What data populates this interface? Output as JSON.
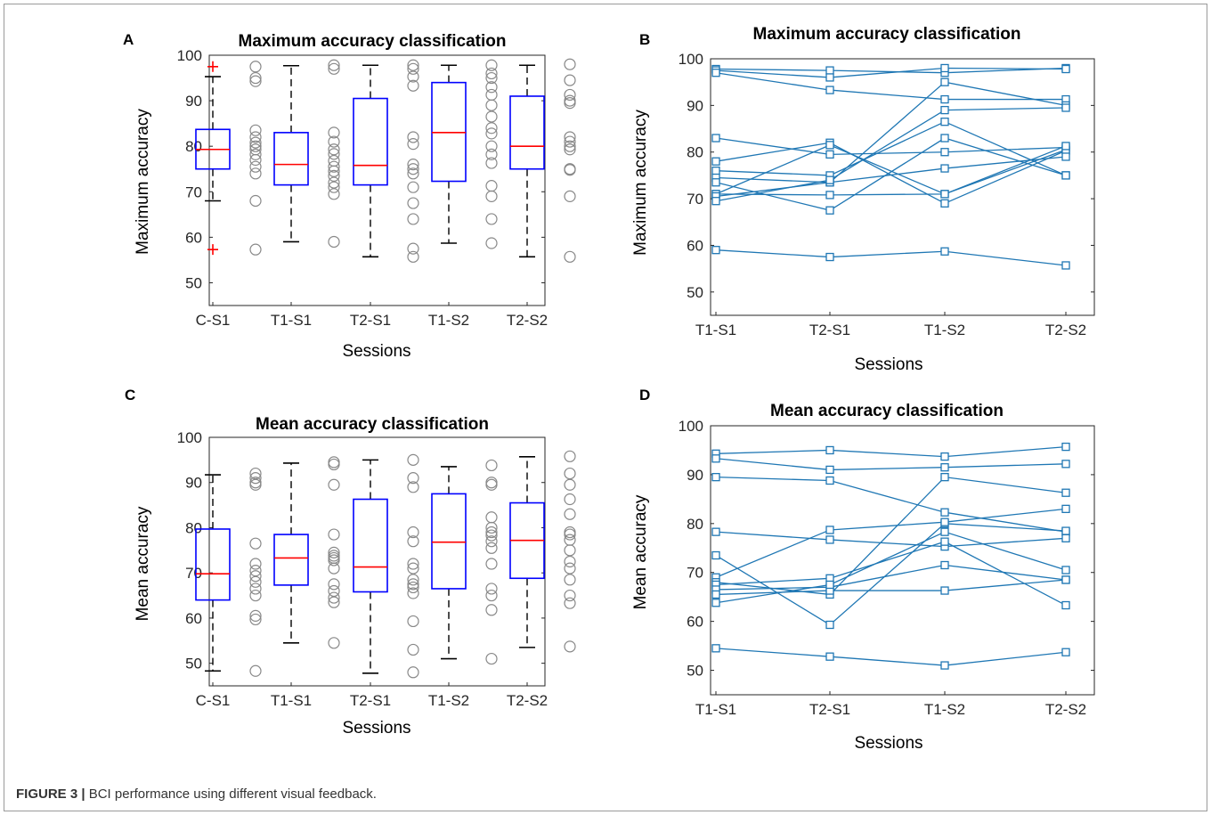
{
  "figure": {
    "caption_label": "FIGURE 3 |",
    "caption_text": "BCI performance using different visual feedback."
  },
  "colors": {
    "box": "#0000ff",
    "median": "#ff0000",
    "outlier": "#ff0000",
    "whisker": "#000000",
    "scatter_point": "#888888",
    "line_series": "#1f77b4"
  },
  "chart_data": [
    {
      "panel": "A",
      "type": "box",
      "title": "Maximum accuracy classification",
      "xlabel": "Sessions",
      "ylabel": "Maximum accuracy",
      "ylim": [
        45,
        100
      ],
      "yticks": [
        50,
        60,
        70,
        80,
        90,
        100
      ],
      "categories": [
        "C-S1",
        "T1-S1",
        "T2-S1",
        "T1-S2",
        "T2-S2"
      ],
      "boxes": [
        {
          "q1": 75,
          "median": 79.3,
          "q3": 83.7,
          "whisker_low": 68,
          "whisker_high": 95.3,
          "outliers": [
            97.5,
            57.3
          ]
        },
        {
          "q1": 71.5,
          "median": 76,
          "q3": 83,
          "whisker_low": 59,
          "whisker_high": 97.7,
          "outliers": []
        },
        {
          "q1": 71.5,
          "median": 75.8,
          "q3": 90.5,
          "whisker_low": 55.7,
          "whisker_high": 97.8,
          "outliers": []
        },
        {
          "q1": 72.3,
          "median": 83,
          "q3": 94,
          "whisker_low": 58.7,
          "whisker_high": 97.8,
          "outliers": []
        },
        {
          "q1": 75,
          "median": 80,
          "q3": 91,
          "whisker_low": 55.7,
          "whisker_high": 97.8,
          "outliers": []
        }
      ],
      "points": [
        [
          97.5,
          95,
          94.3,
          83.5,
          82,
          80.8,
          80,
          79.3,
          78.2,
          77,
          75.5,
          74,
          68,
          57.3
        ],
        [
          97.8,
          97,
          83,
          81,
          79.3,
          78.3,
          76.8,
          75.5,
          74.5,
          73.5,
          72,
          71,
          69.5,
          59
        ],
        [
          97.8,
          97,
          95.3,
          93.3,
          82,
          80.5,
          76,
          75,
          74,
          71,
          67.5,
          64,
          57.5,
          55.7
        ],
        [
          97.8,
          96,
          95,
          93,
          91.3,
          89,
          86.5,
          84,
          82.8,
          80,
          78.2,
          76.3,
          71.3,
          69,
          64,
          58.7
        ],
        [
          98,
          94.5,
          91.3,
          90,
          89.5,
          82,
          81,
          80,
          79.3,
          75,
          74.8,
          69,
          55.7
        ]
      ]
    },
    {
      "panel": "B",
      "type": "line",
      "title": "Maximum accuracy classification",
      "xlabel": "Sessions",
      "ylabel": "Maximum accuracy",
      "ylim": [
        45,
        100
      ],
      "yticks": [
        50,
        60,
        70,
        80,
        90,
        100
      ],
      "categories": [
        "T1-S1",
        "T2-S1",
        "T1-S2",
        "T2-S2"
      ],
      "series": [
        {
          "values": [
            97.8,
            97.5,
            97.0,
            98.0
          ]
        },
        {
          "values": [
            97.5,
            96.0,
            98.0,
            97.8
          ]
        },
        {
          "values": [
            97.0,
            93.3,
            91.3,
            91.3
          ]
        },
        {
          "values": [
            83.0,
            79.5,
            80.0,
            81.0
          ]
        },
        {
          "values": [
            78.0,
            82.0,
            69.0,
            80.3
          ]
        },
        {
          "values": [
            76.0,
            75.0,
            86.5,
            75.0
          ]
        },
        {
          "values": [
            74.5,
            73.5,
            95.0,
            90.0
          ]
        },
        {
          "values": [
            73.5,
            67.5,
            83.0,
            75.0
          ]
        },
        {
          "values": [
            71.0,
            81.5,
            71.0,
            80.5
          ]
        },
        {
          "values": [
            71.0,
            70.8,
            71.0,
            81.3
          ]
        },
        {
          "values": [
            70.5,
            73.5,
            76.5,
            79.0
          ]
        },
        {
          "values": [
            69.5,
            74.0,
            89.0,
            89.5
          ]
        },
        {
          "values": [
            59.0,
            57.5,
            58.7,
            55.7
          ]
        }
      ]
    },
    {
      "panel": "C",
      "type": "box",
      "title": "Mean accuracy classification",
      "xlabel": "Sessions",
      "ylabel": "Mean accuracy",
      "ylim": [
        45,
        100
      ],
      "yticks": [
        50,
        60,
        70,
        80,
        90,
        100
      ],
      "categories": [
        "C-S1",
        "T1-S1",
        "T2-S1",
        "T1-S2",
        "T2-S2"
      ],
      "boxes": [
        {
          "q1": 64,
          "median": 69.8,
          "q3": 79.7,
          "whisker_low": 48.3,
          "whisker_high": 91.7,
          "outliers": []
        },
        {
          "q1": 67.3,
          "median": 73.3,
          "q3": 78.5,
          "whisker_low": 54.5,
          "whisker_high": 94.3,
          "outliers": []
        },
        {
          "q1": 65.8,
          "median": 71.3,
          "q3": 86.3,
          "whisker_low": 47.8,
          "whisker_high": 95,
          "outliers": []
        },
        {
          "q1": 66.5,
          "median": 76.8,
          "q3": 87.5,
          "whisker_low": 51,
          "whisker_high": 93.5,
          "outliers": []
        },
        {
          "q1": 68.8,
          "median": 77.2,
          "q3": 85.5,
          "whisker_low": 53.5,
          "whisker_high": 95.7,
          "outliers": []
        }
      ],
      "points": [
        [
          92,
          91,
          90,
          89.5,
          76.5,
          72,
          70.5,
          69.3,
          68,
          66.5,
          65,
          60.5,
          59.7,
          48.3
        ],
        [
          94.5,
          94,
          89.5,
          78.5,
          74.5,
          73.8,
          73.3,
          72.8,
          71,
          67.5,
          66,
          64.5,
          63.5,
          54.5
        ],
        [
          95,
          91,
          89,
          79,
          77,
          72,
          71,
          68.5,
          67.5,
          66.8,
          65.5,
          59.3,
          53,
          48
        ],
        [
          93.8,
          90,
          89.5,
          82.3,
          80,
          79,
          78.3,
          77,
          75.5,
          72,
          66.5,
          65,
          61.8,
          51
        ],
        [
          95.8,
          92,
          89.5,
          86.3,
          83,
          79,
          78.5,
          77.3,
          75,
          72.5,
          71,
          68.5,
          65,
          63.3,
          53.7
        ]
      ]
    },
    {
      "panel": "D",
      "type": "line",
      "title": "Mean accuracy classification",
      "xlabel": "Sessions",
      "ylabel": "Mean accuracy",
      "ylim": [
        45,
        100
      ],
      "yticks": [
        50,
        60,
        70,
        80,
        90,
        100
      ],
      "categories": [
        "T1-S1",
        "T2-S1",
        "T1-S2",
        "T2-S2"
      ],
      "series": [
        {
          "values": [
            94.3,
            95.0,
            93.7,
            95.7
          ]
        },
        {
          "values": [
            93.3,
            91.0,
            91.5,
            92.2
          ]
        },
        {
          "values": [
            89.5,
            88.8,
            82.3,
            78.3
          ]
        },
        {
          "values": [
            78.3,
            76.7,
            75.3,
            77.0
          ]
        },
        {
          "values": [
            73.5,
            59.3,
            80.0,
            78.5
          ]
        },
        {
          "values": [
            69.0,
            78.7,
            80.3,
            83.0
          ]
        },
        {
          "values": [
            68.0,
            65.5,
            89.5,
            86.3
          ]
        },
        {
          "values": [
            67.5,
            68.8,
            76.3,
            63.3
          ]
        },
        {
          "values": [
            66.5,
            67.0,
            71.5,
            68.5
          ]
        },
        {
          "values": [
            65.5,
            66.3,
            66.3,
            68.5
          ]
        },
        {
          "values": [
            63.8,
            67.5,
            78.3,
            70.5
          ]
        },
        {
          "values": [
            54.5,
            52.8,
            51.0,
            53.7
          ]
        }
      ]
    }
  ]
}
